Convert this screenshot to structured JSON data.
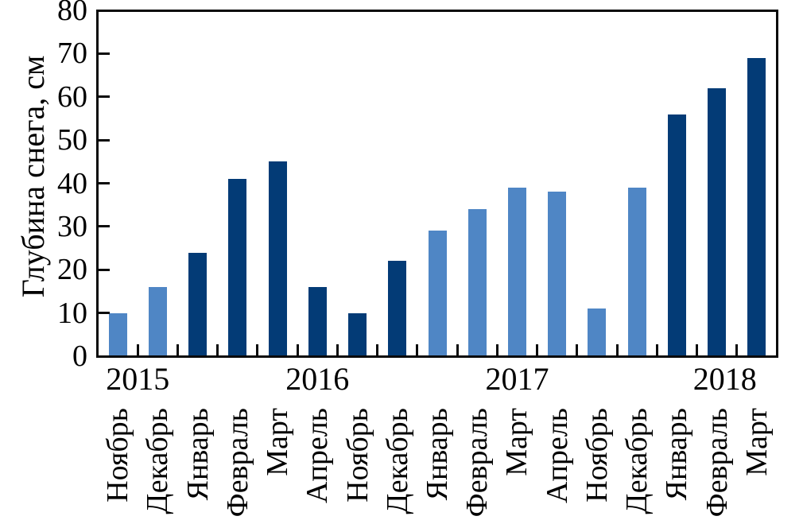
{
  "chart_data": {
    "type": "bar",
    "title": "",
    "xlabel": "",
    "ylabel": "Глубина снега, см",
    "ylim": [
      0,
      80
    ],
    "yticks": [
      0,
      10,
      20,
      30,
      40,
      50,
      60,
      70,
      80
    ],
    "grid": false,
    "legend": "none",
    "categories": [
      "Ноябрь",
      "Декабрь",
      "Январь",
      "Февраль",
      "Март",
      "Апрель",
      "Ноябрь",
      "Декабрь",
      "Январь",
      "Февраль",
      "Март",
      "Апрель",
      "Ноябрь",
      "Декабрь",
      "Январь",
      "Февраль",
      "Март"
    ],
    "values": [
      10,
      16,
      24,
      41,
      45,
      16,
      10,
      22,
      29,
      34,
      39,
      38,
      11,
      39,
      56,
      62,
      69
    ],
    "shades": [
      "light",
      "light",
      "dark",
      "dark",
      "dark",
      "dark",
      "dark",
      "dark",
      "light",
      "light",
      "light",
      "light",
      "light",
      "light",
      "dark",
      "dark",
      "dark"
    ],
    "colors": {
      "light": "#4F86C5",
      "dark": "#033B76",
      "axis": "#0a0a0a"
    },
    "year_labels": [
      {
        "text": "2015",
        "center_category_index": 0.5
      },
      {
        "text": "2016",
        "center_category_index": 5
      },
      {
        "text": "2017",
        "center_category_index": 10
      },
      {
        "text": "2018",
        "center_category_index": 15.2
      }
    ]
  }
}
